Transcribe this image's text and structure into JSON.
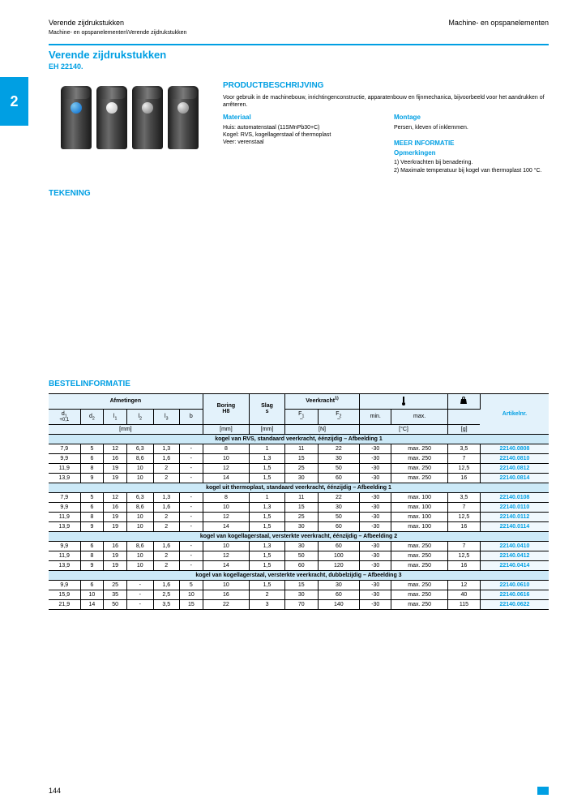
{
  "header": {
    "left": "Verende zijdrukstukken",
    "right": "Machine- en opspanelementen"
  },
  "breadcrumb": "Machine- en opspanelementen\\Verende zijdrukstukken",
  "title": "Verende zijdrukstukken",
  "subtitle": "EH 22140.",
  "side_tab": "2",
  "desc": {
    "heading": "PRODUCTBESCHRIJVING",
    "intro": "Voor gebruik in de machinebouw, inrichtingenconstructie, apparatenbouw en fijnmechanica, bijvoorbeeld voor het aandrukken of arrêteren.",
    "material_label": "Materiaal",
    "material_text": "Huis: automatenstaal (11SMnPb30+C)\nKogel: RVS, kogellagerstaal of thermoplast\nVeer: verenstaal",
    "montage_label": "Montage",
    "montage_text": "Persen, kleven of inklemmen.",
    "more_label": "MEER INFORMATIE",
    "opm_label": "Opmerkingen",
    "opm_text": "1) Veerkrachten bij benadering.\n2) Maximale temperatuur bij kogel van thermoplast 100 °C."
  },
  "tekening_h": "TEKENING",
  "bestel_h": "BESTELINFORMATIE",
  "table": {
    "head": {
      "afm": "Afmetingen",
      "boring": "Boring\nH8",
      "slag": "Slag\ns",
      "veer": "Veerkracht",
      "veer_sup": "1)",
      "temp_icon": "temp",
      "weight_icon": "weight",
      "art": "Artikelnr.",
      "d1": "d",
      "d1_sub": "1",
      "d1_tol": "+0,1",
      "d2": "d",
      "d2_sub": "2",
      "l1": "l",
      "l1_sub": "1",
      "l2": "l",
      "l2_sub": "2",
      "l3": "l",
      "l3_sub": "3",
      "b": "b",
      "f1": "F",
      "f1_sub": "1",
      "f2": "F",
      "f2_sub": "2",
      "tilde": "~",
      "min": "min.",
      "max": "max.",
      "mm": "[mm]",
      "n": "[N]",
      "c": "[°C]",
      "g": "[g]"
    },
    "groups": [
      {
        "label": "kogel van RVS, standaard veerkracht, éénzijdig – Afbeelding 1",
        "rows": [
          {
            "d1": "7,9",
            "d2": "5",
            "l1": "12",
            "l2": "6,3",
            "l3": "1,3",
            "b": "-",
            "boring": "8",
            "slag": "1",
            "f1": "11",
            "f2": "22",
            "tmin": "-30",
            "tmax": "max. 250",
            "wt": "3,5",
            "art": "22140.0808"
          },
          {
            "d1": "9,9",
            "d2": "6",
            "l1": "16",
            "l2": "8,6",
            "l3": "1,6",
            "b": "-",
            "boring": "10",
            "slag": "1,3",
            "f1": "15",
            "f2": "30",
            "tmin": "-30",
            "tmax": "max. 250",
            "wt": "7",
            "art": "22140.0810"
          },
          {
            "d1": "11,9",
            "d2": "8",
            "l1": "19",
            "l2": "10",
            "l3": "2",
            "b": "-",
            "boring": "12",
            "slag": "1,5",
            "f1": "25",
            "f2": "50",
            "tmin": "-30",
            "tmax": "max. 250",
            "wt": "12,5",
            "art": "22140.0812"
          },
          {
            "d1": "13,9",
            "d2": "9",
            "l1": "19",
            "l2": "10",
            "l3": "2",
            "b": "-",
            "boring": "14",
            "slag": "1,5",
            "f1": "30",
            "f2": "60",
            "tmin": "-30",
            "tmax": "max. 250",
            "wt": "16",
            "art": "22140.0814"
          }
        ]
      },
      {
        "label": "kogel uit thermoplast, standaard veerkracht, éénzijdig – Afbeelding 1",
        "rows": [
          {
            "d1": "7,9",
            "d2": "5",
            "l1": "12",
            "l2": "6,3",
            "l3": "1,3",
            "b": "-",
            "boring": "8",
            "slag": "1",
            "f1": "11",
            "f2": "22",
            "tmin": "-30",
            "tmax": "max. 100",
            "wt": "3,5",
            "art": "22140.0108"
          },
          {
            "d1": "9,9",
            "d2": "6",
            "l1": "16",
            "l2": "8,6",
            "l3": "1,6",
            "b": "-",
            "boring": "10",
            "slag": "1,3",
            "f1": "15",
            "f2": "30",
            "tmin": "-30",
            "tmax": "max. 100",
            "wt": "7",
            "art": "22140.0110"
          },
          {
            "d1": "11,9",
            "d2": "8",
            "l1": "19",
            "l2": "10",
            "l3": "2",
            "b": "-",
            "boring": "12",
            "slag": "1,5",
            "f1": "25",
            "f2": "50",
            "tmin": "-30",
            "tmax": "max. 100",
            "wt": "12,5",
            "art": "22140.0112"
          },
          {
            "d1": "13,9",
            "d2": "9",
            "l1": "19",
            "l2": "10",
            "l3": "2",
            "b": "-",
            "boring": "14",
            "slag": "1,5",
            "f1": "30",
            "f2": "60",
            "tmin": "-30",
            "tmax": "max. 100",
            "wt": "16",
            "art": "22140.0114"
          }
        ]
      },
      {
        "label": "kogel van kogellagerstaal, versterkte veerkracht, éénzijdig – Afbeelding 2",
        "rows": [
          {
            "d1": "9,9",
            "d2": "6",
            "l1": "16",
            "l2": "8,6",
            "l3": "1,6",
            "b": "-",
            "boring": "10",
            "slag": "1,3",
            "f1": "30",
            "f2": "60",
            "tmin": "-30",
            "tmax": "max. 250",
            "wt": "7",
            "art": "22140.0410"
          },
          {
            "d1": "11,9",
            "d2": "8",
            "l1": "19",
            "l2": "10",
            "l3": "2",
            "b": "-",
            "boring": "12",
            "slag": "1,5",
            "f1": "50",
            "f2": "100",
            "tmin": "-30",
            "tmax": "max. 250",
            "wt": "12,5",
            "art": "22140.0412"
          },
          {
            "d1": "13,9",
            "d2": "9",
            "l1": "19",
            "l2": "10",
            "l3": "2",
            "b": "-",
            "boring": "14",
            "slag": "1,5",
            "f1": "60",
            "f2": "120",
            "tmin": "-30",
            "tmax": "max. 250",
            "wt": "16",
            "art": "22140.0414"
          }
        ]
      },
      {
        "label": "kogel van kogellagerstaal, versterkte veerkracht, dubbelzijdig – Afbeelding 3",
        "rows": [
          {
            "d1": "9,9",
            "d2": "6",
            "l1": "25",
            "l2": "-",
            "l3": "1,6",
            "b": "5",
            "boring": "10",
            "slag": "1,5",
            "f1": "15",
            "f2": "30",
            "tmin": "-30",
            "tmax": "max. 250",
            "wt": "12",
            "art": "22140.0610"
          },
          {
            "d1": "15,9",
            "d2": "10",
            "l1": "35",
            "l2": "-",
            "l3": "2,5",
            "b": "10",
            "boring": "16",
            "slag": "2",
            "f1": "30",
            "f2": "60",
            "tmin": "-30",
            "tmax": "max. 250",
            "wt": "40",
            "art": "22140.0616"
          },
          {
            "d1": "21,9",
            "d2": "14",
            "l1": "50",
            "l2": "-",
            "l3": "3,5",
            "b": "15",
            "boring": "22",
            "slag": "3",
            "f1": "70",
            "f2": "140",
            "tmin": "-30",
            "tmax": "max. 250",
            "wt": "115",
            "art": "22140.0622"
          }
        ]
      }
    ]
  },
  "page_number": "144",
  "colors": {
    "accent": "#009fe3",
    "head_bg": "#e3f2fb",
    "group_bg": "#cce9f7",
    "art_bg": "#f0f8fd"
  }
}
